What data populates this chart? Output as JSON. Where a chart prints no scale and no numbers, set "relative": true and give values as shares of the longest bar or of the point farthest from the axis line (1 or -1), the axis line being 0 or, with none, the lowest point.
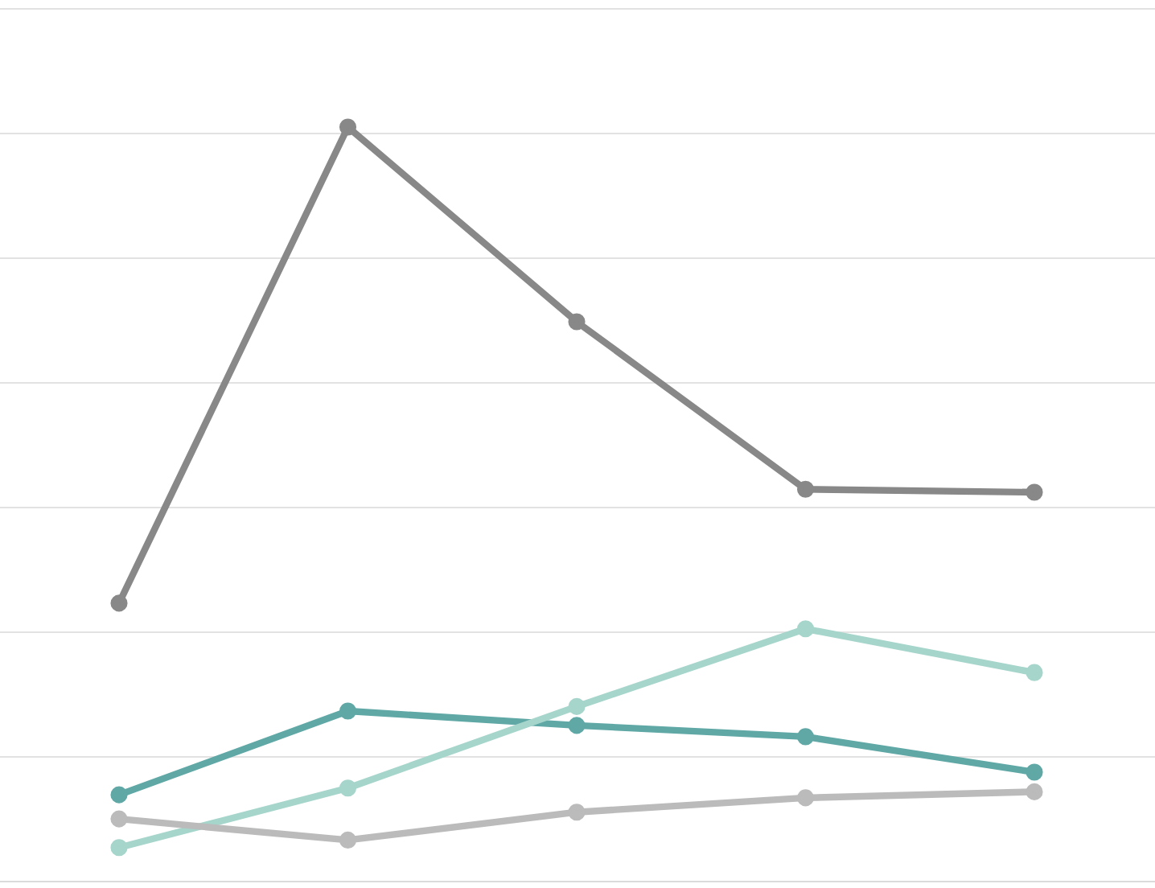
{
  "chart_data": {
    "type": "line",
    "relative": true,
    "grid": "y",
    "marker": "circle",
    "line_style": "solid",
    "categories": [
      null,
      null,
      null,
      null,
      null
    ],
    "series": [
      {
        "color": "#888888",
        "values": [
          0.369,
          1,
          0.742,
          0.52,
          0.516
        ]
      },
      {
        "color": "#5fa8a6",
        "values": [
          0.115,
          0.226,
          0.207,
          0.192,
          0.145
        ]
      },
      {
        "color": "#a6d5cb",
        "values": [
          0.045,
          0.124,
          0.232,
          0.335,
          0.277
        ]
      },
      {
        "color": "#bbbbbb",
        "values": [
          0.083,
          0.055,
          0.092,
          0.111,
          0.119
        ]
      }
    ]
  }
}
